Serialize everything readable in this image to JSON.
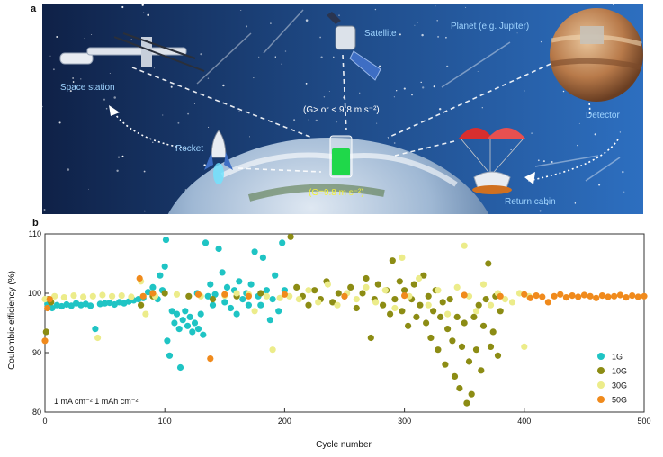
{
  "panel_a": {
    "letter": "a",
    "labels": {
      "space_station": "Space station",
      "satellite": "Satellite",
      "planet": "Planet (e.g. Jupiter)",
      "rocket": "Rocket",
      "detector": "Detector",
      "return_cabin": "Return cabin",
      "gravity_space": "(G> or < 9.8 m s⁻²)",
      "gravity_earth": "(G=9.8 m s⁻²)"
    }
  },
  "panel_b": {
    "letter": "b",
    "annotation": "1 mA cm⁻²  1 mAh cm⁻²"
  },
  "colors": {
    "1G": "#1fc4c4",
    "10G": "#8c8c14",
    "30G": "#ecec8a",
    "50G": "#f08a1c"
  },
  "chart_data": {
    "type": "scatter",
    "xlabel": "Cycle number",
    "ylabel": "Coulombic efficiency (%)",
    "xlim": [
      0,
      500
    ],
    "ylim": [
      80,
      110
    ],
    "xticks": [
      0,
      100,
      200,
      300,
      400,
      500
    ],
    "yticks": [
      80,
      90,
      100,
      110
    ],
    "legend_position": "bottom-right",
    "series": [
      {
        "name": "1G",
        "points": [
          [
            2,
            98.2
          ],
          [
            6,
            97.5
          ],
          [
            10,
            98.0
          ],
          [
            14,
            97.8
          ],
          [
            18,
            98.1
          ],
          [
            22,
            97.9
          ],
          [
            26,
            98.3
          ],
          [
            30,
            98.0
          ],
          [
            34,
            98.2
          ],
          [
            38,
            97.9
          ],
          [
            42,
            94.0
          ],
          [
            46,
            98.2
          ],
          [
            50,
            98.3
          ],
          [
            54,
            98.4
          ],
          [
            58,
            98.1
          ],
          [
            62,
            98.5
          ],
          [
            66,
            98.3
          ],
          [
            70,
            98.6
          ],
          [
            74,
            98.8
          ],
          [
            78,
            99.0
          ],
          [
            82,
            99.2
          ],
          [
            86,
            100.2
          ],
          [
            90,
            101.0
          ],
          [
            94,
            99.0
          ],
          [
            96,
            103.0
          ],
          [
            98,
            100.5
          ],
          [
            100,
            104.5
          ],
          [
            101,
            109.0
          ],
          [
            102,
            92.0
          ],
          [
            104,
            89.5
          ],
          [
            106,
            97.0
          ],
          [
            108,
            95.0
          ],
          [
            110,
            96.5
          ],
          [
            112,
            94.0
          ],
          [
            113,
            87.5
          ],
          [
            115,
            95.5
          ],
          [
            117,
            97.0
          ],
          [
            119,
            94.5
          ],
          [
            121,
            96.0
          ],
          [
            123,
            93.5
          ],
          [
            125,
            95.0
          ],
          [
            127,
            100.0
          ],
          [
            128,
            94.0
          ],
          [
            130,
            96.5
          ],
          [
            132,
            93.0
          ],
          [
            134,
            108.5
          ],
          [
            136,
            99.5
          ],
          [
            138,
            101.5
          ],
          [
            140,
            98.0
          ],
          [
            142,
            99.8
          ],
          [
            145,
            107.5
          ],
          [
            148,
            103.5
          ],
          [
            150,
            98.5
          ],
          [
            152,
            101.0
          ],
          [
            155,
            97.5
          ],
          [
            158,
            100.5
          ],
          [
            160,
            96.5
          ],
          [
            162,
            102.0
          ],
          [
            165,
            99.0
          ],
          [
            168,
            100.0
          ],
          [
            170,
            98.0
          ],
          [
            172,
            101.5
          ],
          [
            175,
            107.0
          ],
          [
            178,
            99.5
          ],
          [
            180,
            98.0
          ],
          [
            182,
            106.0
          ],
          [
            185,
            100.5
          ],
          [
            188,
            95.5
          ],
          [
            190,
            99.0
          ],
          [
            192,
            103.0
          ],
          [
            195,
            97.0
          ],
          [
            198,
            108.5
          ],
          [
            200,
            100.5
          ]
        ]
      },
      {
        "name": "10G",
        "points": [
          [
            1,
            93.5
          ],
          [
            3,
            99.0
          ],
          [
            5,
            98.5
          ],
          [
            80,
            98.0
          ],
          [
            90,
            99.5
          ],
          [
            100,
            100.0
          ],
          [
            120,
            99.5
          ],
          [
            140,
            99.0
          ],
          [
            160,
            99.5
          ],
          [
            180,
            100.0
          ],
          [
            205,
            109.5
          ],
          [
            210,
            101.0
          ],
          [
            215,
            99.5
          ],
          [
            220,
            98.0
          ],
          [
            225,
            100.5
          ],
          [
            230,
            99.0
          ],
          [
            235,
            102.0
          ],
          [
            240,
            98.5
          ],
          [
            245,
            100.0
          ],
          [
            250,
            99.5
          ],
          [
            255,
            101.0
          ],
          [
            260,
            97.5
          ],
          [
            265,
            100.0
          ],
          [
            268,
            102.5
          ],
          [
            272,
            92.5
          ],
          [
            275,
            99.0
          ],
          [
            278,
            101.5
          ],
          [
            282,
            98.0
          ],
          [
            285,
            100.5
          ],
          [
            288,
            96.5
          ],
          [
            290,
            105.5
          ],
          [
            292,
            99.0
          ],
          [
            296,
            102.0
          ],
          [
            298,
            97.0
          ],
          [
            300,
            100.5
          ],
          [
            303,
            94.5
          ],
          [
            306,
            99.0
          ],
          [
            308,
            101.5
          ],
          [
            310,
            96.0
          ],
          [
            313,
            98.0
          ],
          [
            316,
            103.0
          ],
          [
            318,
            95.0
          ],
          [
            320,
            99.5
          ],
          [
            322,
            92.5
          ],
          [
            324,
            97.0
          ],
          [
            326,
            100.5
          ],
          [
            328,
            90.5
          ],
          [
            330,
            96.0
          ],
          [
            332,
            98.5
          ],
          [
            334,
            88.0
          ],
          [
            336,
            94.0
          ],
          [
            338,
            99.0
          ],
          [
            340,
            92.0
          ],
          [
            342,
            86.0
          ],
          [
            344,
            96.0
          ],
          [
            346,
            84.0
          ],
          [
            348,
            91.0
          ],
          [
            350,
            95.0
          ],
          [
            352,
            81.5
          ],
          [
            354,
            88.5
          ],
          [
            356,
            83.0
          ],
          [
            358,
            96.0
          ],
          [
            360,
            90.5
          ],
          [
            362,
            98.0
          ],
          [
            364,
            87.0
          ],
          [
            366,
            94.5
          ],
          [
            368,
            99.0
          ],
          [
            370,
            105.0
          ],
          [
            372,
            91.0
          ],
          [
            374,
            93.5
          ],
          [
            376,
            99.5
          ],
          [
            378,
            89.5
          ],
          [
            380,
            97.0
          ]
        ]
      },
      {
        "name": "30G",
        "points": [
          [
            0,
            99.0
          ],
          [
            8,
            99.5
          ],
          [
            16,
            99.3
          ],
          [
            24,
            99.6
          ],
          [
            32,
            99.4
          ],
          [
            40,
            99.5
          ],
          [
            44,
            92.5
          ],
          [
            48,
            99.7
          ],
          [
            56,
            99.5
          ],
          [
            64,
            99.6
          ],
          [
            72,
            99.4
          ],
          [
            80,
            102.0
          ],
          [
            84,
            96.5
          ],
          [
            92,
            99.5
          ],
          [
            110,
            99.8
          ],
          [
            130,
            99.5
          ],
          [
            150,
            99.6
          ],
          [
            160,
            100.0
          ],
          [
            170,
            99.8
          ],
          [
            175,
            97.0
          ],
          [
            185,
            99.5
          ],
          [
            190,
            90.5
          ],
          [
            196,
            99.2
          ],
          [
            204,
            99.5
          ],
          [
            212,
            99.0
          ],
          [
            220,
            100.5
          ],
          [
            228,
            98.5
          ],
          [
            236,
            101.5
          ],
          [
            244,
            98.0
          ],
          [
            252,
            100.0
          ],
          [
            260,
            99.0
          ],
          [
            268,
            101.0
          ],
          [
            276,
            98.5
          ],
          [
            284,
            100.5
          ],
          [
            292,
            97.5
          ],
          [
            298,
            106.0
          ],
          [
            304,
            99.5
          ],
          [
            312,
            102.5
          ],
          [
            320,
            98.0
          ],
          [
            328,
            100.5
          ],
          [
            336,
            96.5
          ],
          [
            344,
            101.0
          ],
          [
            350,
            108.0
          ],
          [
            354,
            99.5
          ],
          [
            360,
            97.0
          ],
          [
            366,
            101.5
          ],
          [
            372,
            98.0
          ],
          [
            378,
            100.0
          ],
          [
            384,
            99.0
          ],
          [
            390,
            98.5
          ],
          [
            396,
            100.0
          ],
          [
            400,
            91.0
          ],
          [
            404,
            99.5
          ]
        ]
      },
      {
        "name": "50G",
        "points": [
          [
            0,
            92.0
          ],
          [
            2,
            97.5
          ],
          [
            4,
            99.0
          ],
          [
            79,
            102.5
          ],
          [
            82,
            99.5
          ],
          [
            90,
            100.0
          ],
          [
            128,
            99.8
          ],
          [
            138,
            89.0
          ],
          [
            150,
            99.8
          ],
          [
            170,
            99.5
          ],
          [
            200,
            99.8
          ],
          [
            250,
            99.5
          ],
          [
            300,
            99.6
          ],
          [
            350,
            99.7
          ],
          [
            380,
            99.5
          ],
          [
            400,
            99.8
          ],
          [
            405,
            99.2
          ],
          [
            410,
            99.6
          ],
          [
            415,
            99.4
          ],
          [
            420,
            98.5
          ],
          [
            425,
            99.5
          ],
          [
            430,
            99.8
          ],
          [
            435,
            99.3
          ],
          [
            440,
            99.6
          ],
          [
            445,
            99.4
          ],
          [
            450,
            99.7
          ],
          [
            455,
            99.5
          ],
          [
            460,
            99.2
          ],
          [
            465,
            99.6
          ],
          [
            470,
            99.4
          ],
          [
            475,
            99.5
          ],
          [
            480,
            99.7
          ],
          [
            485,
            99.3
          ],
          [
            490,
            99.6
          ],
          [
            495,
            99.4
          ],
          [
            500,
            99.5
          ]
        ]
      }
    ]
  }
}
